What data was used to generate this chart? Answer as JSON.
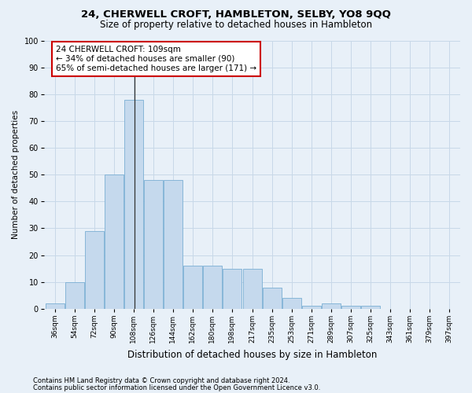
{
  "title": "24, CHERWELL CROFT, HAMBLETON, SELBY, YO8 9QQ",
  "subtitle": "Size of property relative to detached houses in Hambleton",
  "xlabel": "Distribution of detached houses by size in Hambleton",
  "ylabel": "Number of detached properties",
  "bar_values": [
    2,
    10,
    29,
    50,
    78,
    48,
    48,
    16,
    16,
    15,
    15,
    8,
    4,
    1,
    2,
    1,
    1,
    0,
    0,
    0,
    0
  ],
  "bin_edges": [
    36,
    54,
    72,
    90,
    108,
    126,
    144,
    162,
    180,
    198,
    217,
    235,
    253,
    271,
    289,
    307,
    325,
    343,
    361,
    379,
    397
  ],
  "tick_labels": [
    "36sqm",
    "54sqm",
    "72sqm",
    "90sqm",
    "108sqm",
    "126sqm",
    "144sqm",
    "162sqm",
    "180sqm",
    "198sqm",
    "217sqm",
    "235sqm",
    "253sqm",
    "271sqm",
    "289sqm",
    "307sqm",
    "325sqm",
    "343sqm",
    "361sqm",
    "379sqm",
    "397sqm"
  ],
  "bar_color": "#c5d9ed",
  "bar_edge_color": "#7aafd4",
  "vline_x": 109,
  "vline_color": "#333333",
  "annotation_text": "24 CHERWELL CROFT: 109sqm\n← 34% of detached houses are smaller (90)\n65% of semi-detached houses are larger (171) →",
  "annotation_box_color": "#ffffff",
  "annotation_box_edge_color": "#cc0000",
  "ylim": [
    0,
    100
  ],
  "yticks": [
    0,
    10,
    20,
    30,
    40,
    50,
    60,
    70,
    80,
    90,
    100
  ],
  "grid_color": "#c8d8e8",
  "background_color": "#e8f0f8",
  "plot_bg_color": "#e8f0f8",
  "footer_line1": "Contains HM Land Registry data © Crown copyright and database right 2024.",
  "footer_line2": "Contains public sector information licensed under the Open Government Licence v3.0.",
  "title_fontsize": 9.5,
  "subtitle_fontsize": 8.5,
  "xlabel_fontsize": 8.5,
  "ylabel_fontsize": 7.5,
  "tick_fontsize": 6.5,
  "annotation_fontsize": 7.5,
  "footer_fontsize": 6.0
}
